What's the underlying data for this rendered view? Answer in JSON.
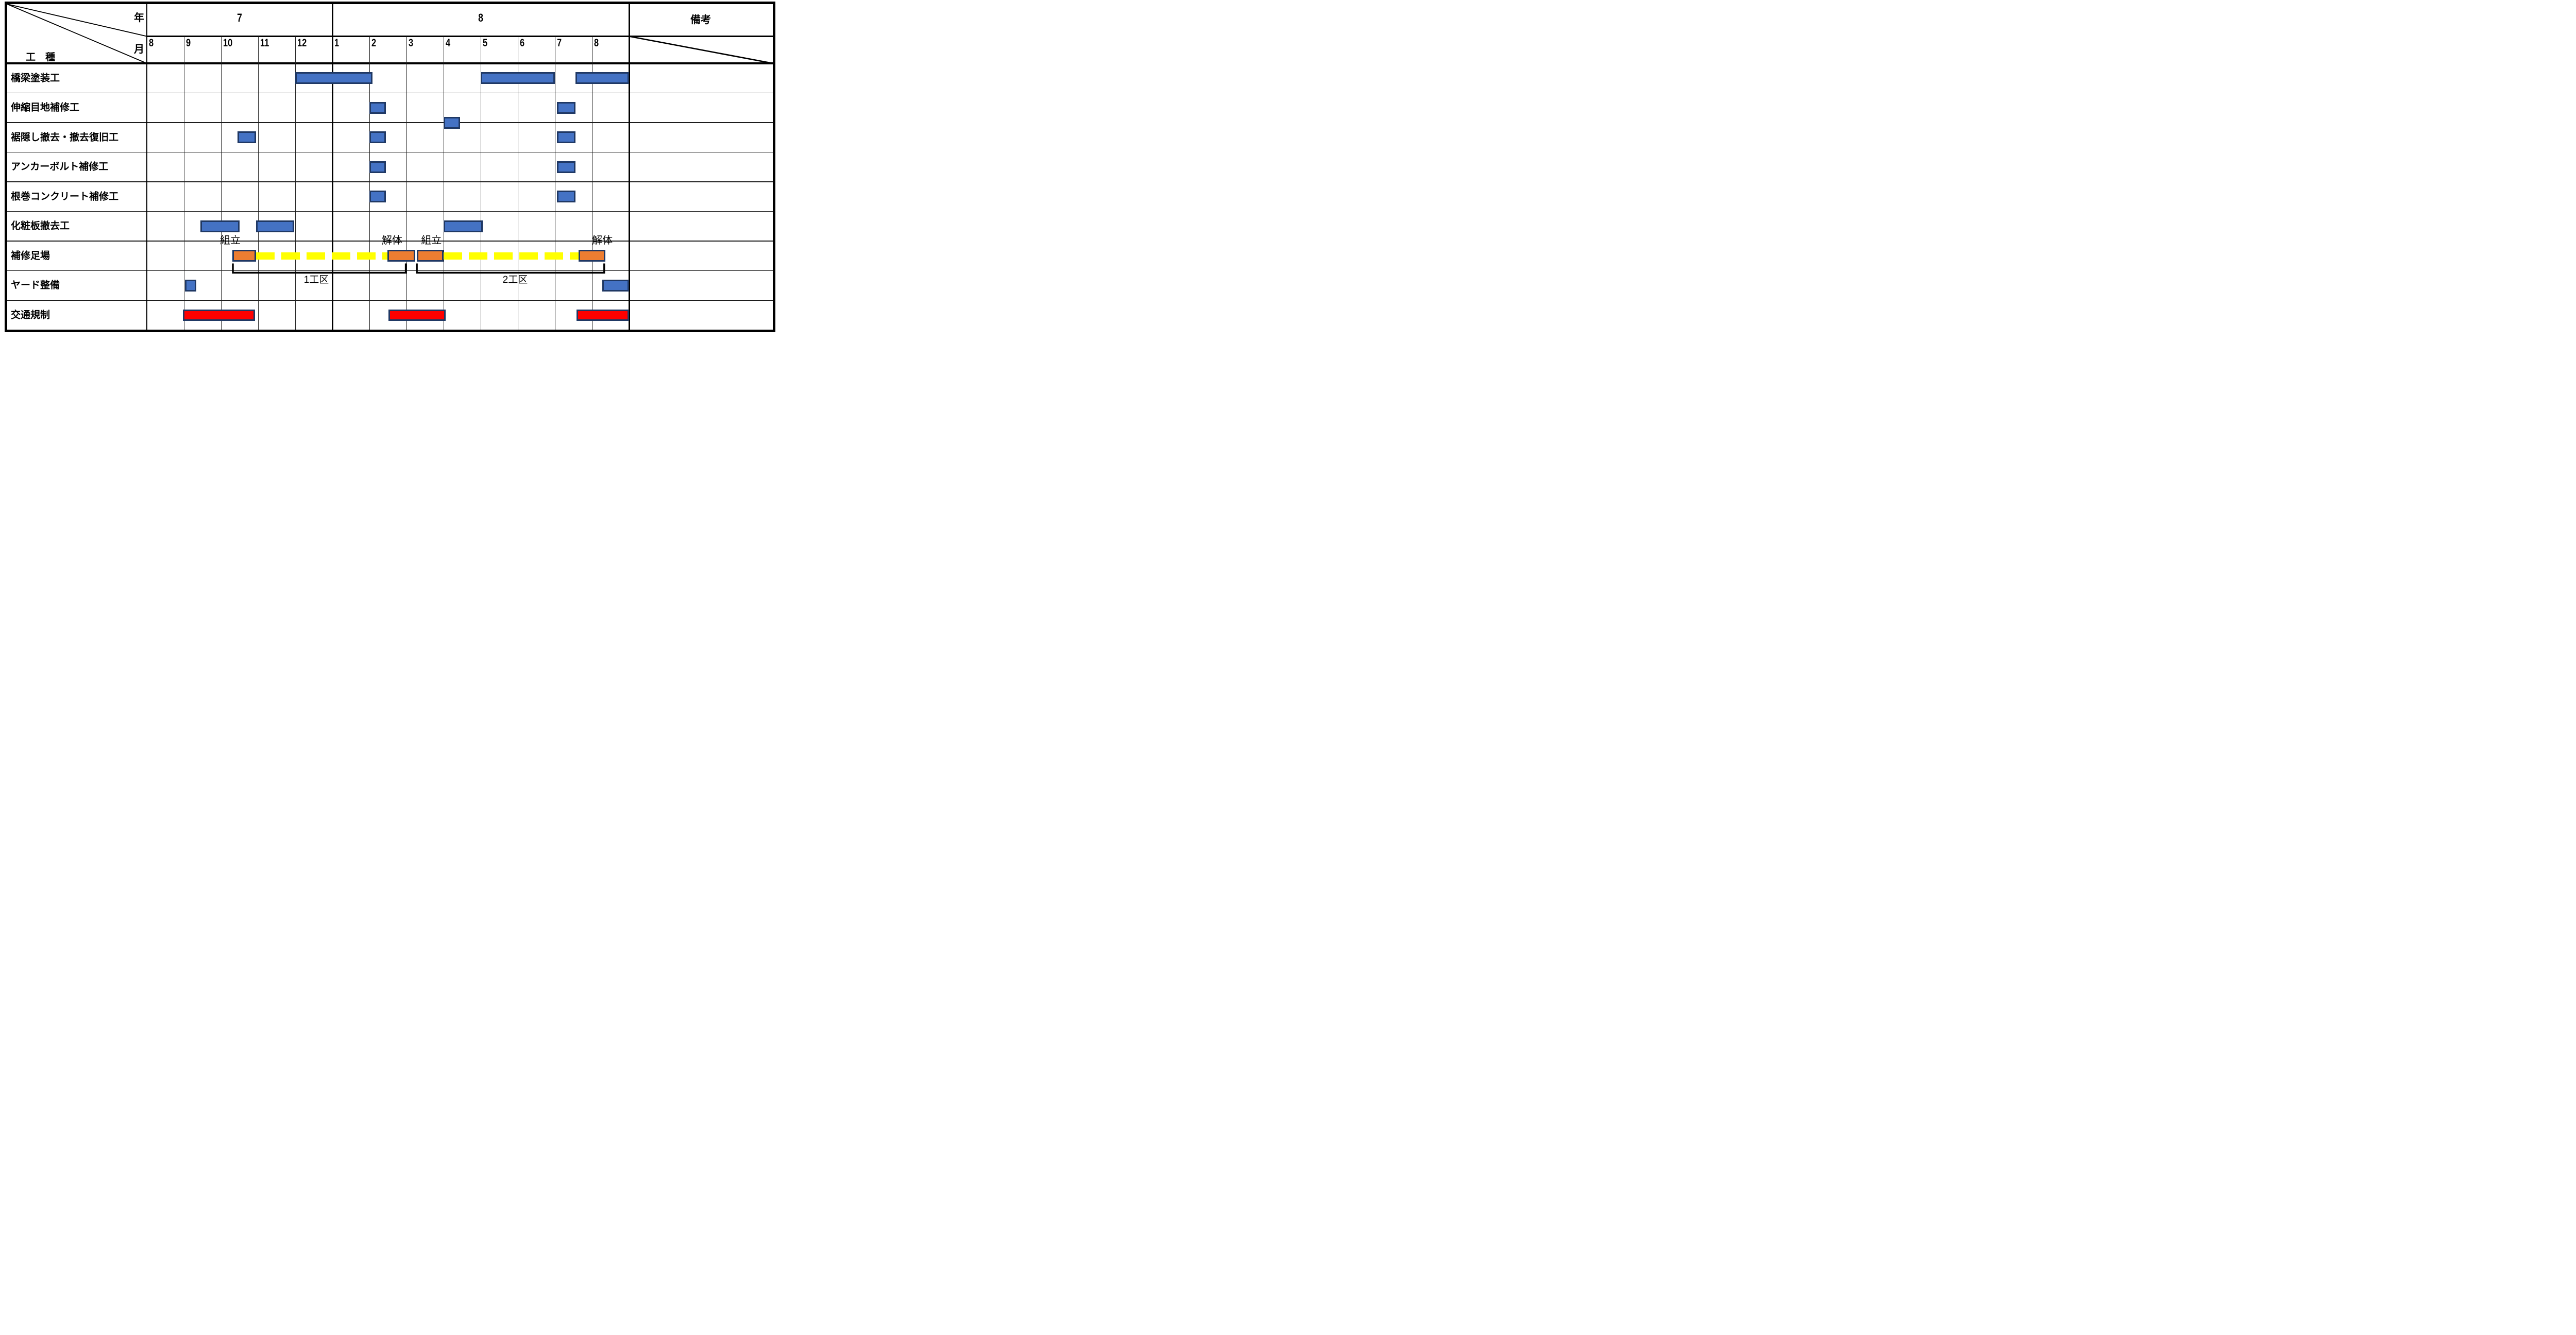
{
  "corner": {
    "year_label": "年",
    "month_label": "月",
    "work_type_label": "工　種"
  },
  "remarks_label": "備考",
  "colors": {
    "task_bar": "#4472C4",
    "scaffold_bar": "#ED7D31",
    "traffic_bar": "#FF0000",
    "connector_dash": "#FFFF00",
    "bar_border": "#1F3864",
    "grid_line": "#000000"
  },
  "chart_data": {
    "type": "gantt",
    "unit_note": "bar positions in month-column units: 0 = left edge of month 8 of year 7, 13 = right edge of month 8 of year 8",
    "years": [
      {
        "label": "7",
        "from_col": 0,
        "to_col": 5
      },
      {
        "label": "8",
        "from_col": 5,
        "to_col": 13
      }
    ],
    "months": [
      "8",
      "9",
      "10",
      "11",
      "12",
      "1",
      "2",
      "3",
      "4",
      "5",
      "6",
      "7",
      "8"
    ],
    "tasks": [
      {
        "name": "橋梁塗装工",
        "color": "#4472C4",
        "bars": [
          [
            4.0,
            6.08
          ],
          [
            9.0,
            11.0
          ],
          [
            11.55,
            13.0
          ]
        ]
      },
      {
        "name": "伸縮目地補修工",
        "color": "#4472C4",
        "bars": [
          [
            6.0,
            6.45
          ],
          [
            11.05,
            11.55
          ]
        ]
      },
      {
        "name": "裾隠し撤去・撤去復旧工",
        "color": "#4472C4",
        "bars": [
          [
            2.45,
            2.95
          ],
          [
            6.0,
            6.45
          ],
          [
            11.05,
            11.55
          ]
        ]
      },
      {
        "name": "アンカーボルト補修工",
        "color": "#4472C4",
        "bars": [
          [
            6.0,
            6.45
          ],
          [
            11.05,
            11.55
          ]
        ]
      },
      {
        "name": "根巻コンクリート補修工",
        "color": "#4472C4",
        "bars": [
          [
            6.0,
            6.45
          ],
          [
            11.05,
            11.55
          ]
        ]
      },
      {
        "name": "化粧板撤去工",
        "color": "#4472C4",
        "bars": [
          [
            1.45,
            2.5
          ],
          [
            2.95,
            3.97
          ],
          [
            8.0,
            9.05
          ]
        ]
      },
      {
        "name": "補修足場",
        "color": "#ED7D31",
        "bars": [
          [
            2.3,
            2.95
          ],
          [
            6.49,
            7.23
          ],
          [
            7.28,
            8.0
          ],
          [
            11.64,
            12.36
          ]
        ],
        "connectors": [
          [
            2.95,
            6.49
          ],
          [
            8.0,
            11.64
          ]
        ],
        "phase_labels": [
          {
            "text": "組立",
            "center": 2.25
          },
          {
            "text": "解体",
            "center": 6.61
          },
          {
            "text": "組立",
            "center": 7.67
          },
          {
            "text": "解体",
            "center": 12.28
          }
        ]
      },
      {
        "name": "ヤード整備",
        "color": "#4472C4",
        "bars": [
          [
            1.03,
            1.33
          ],
          [
            12.28,
            13.0
          ]
        ]
      },
      {
        "name": "交通規制",
        "color": "#FF0000",
        "bars": [
          [
            0.97,
            2.92
          ],
          [
            6.51,
            8.05
          ],
          [
            11.59,
            13.0
          ]
        ]
      }
    ],
    "floating_bars": [
      {
        "between_tasks": [
          "伸縮目地補修工",
          "裾隠し撤去・撤去復旧工"
        ],
        "color": "#4472C4",
        "bar": [
          8.0,
          8.45
        ]
      }
    ],
    "zone_brackets": [
      {
        "label": "1工区",
        "from": 2.32,
        "to": 6.98,
        "label_center": 4.57
      },
      {
        "label": "2工区",
        "from": 7.28,
        "to": 12.33,
        "label_center": 9.93
      }
    ]
  }
}
